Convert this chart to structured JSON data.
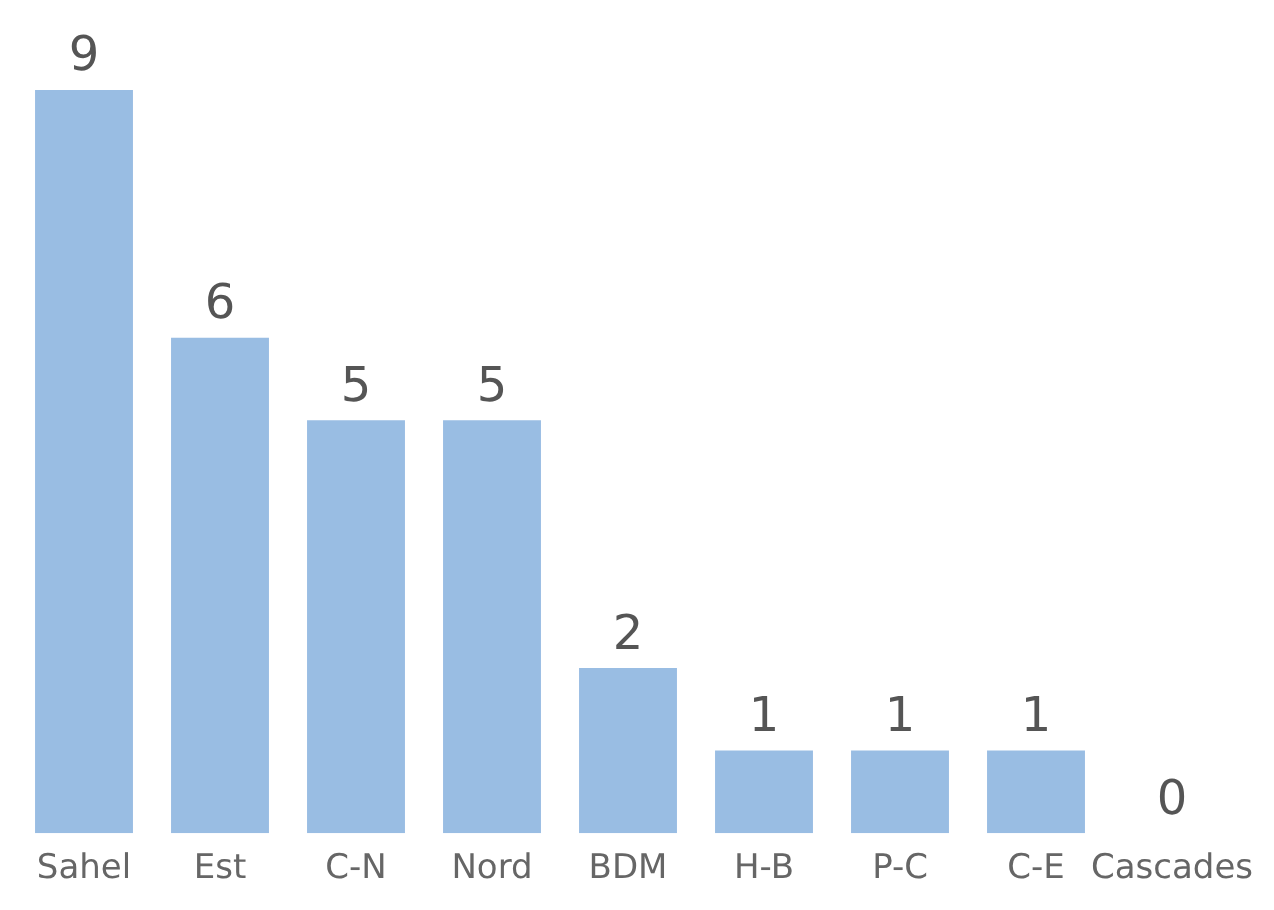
{
  "chart_data": {
    "type": "bar",
    "categories": [
      "Sahel",
      "Est",
      "C-N",
      "Nord",
      "BDM",
      "H-B",
      "P-C",
      "C-E",
      "Cascades"
    ],
    "values": [
      9,
      6,
      5,
      5,
      2,
      1,
      1,
      1,
      0
    ],
    "color": "#99bde3",
    "data_labels": true,
    "grid": false,
    "legend": false
  }
}
